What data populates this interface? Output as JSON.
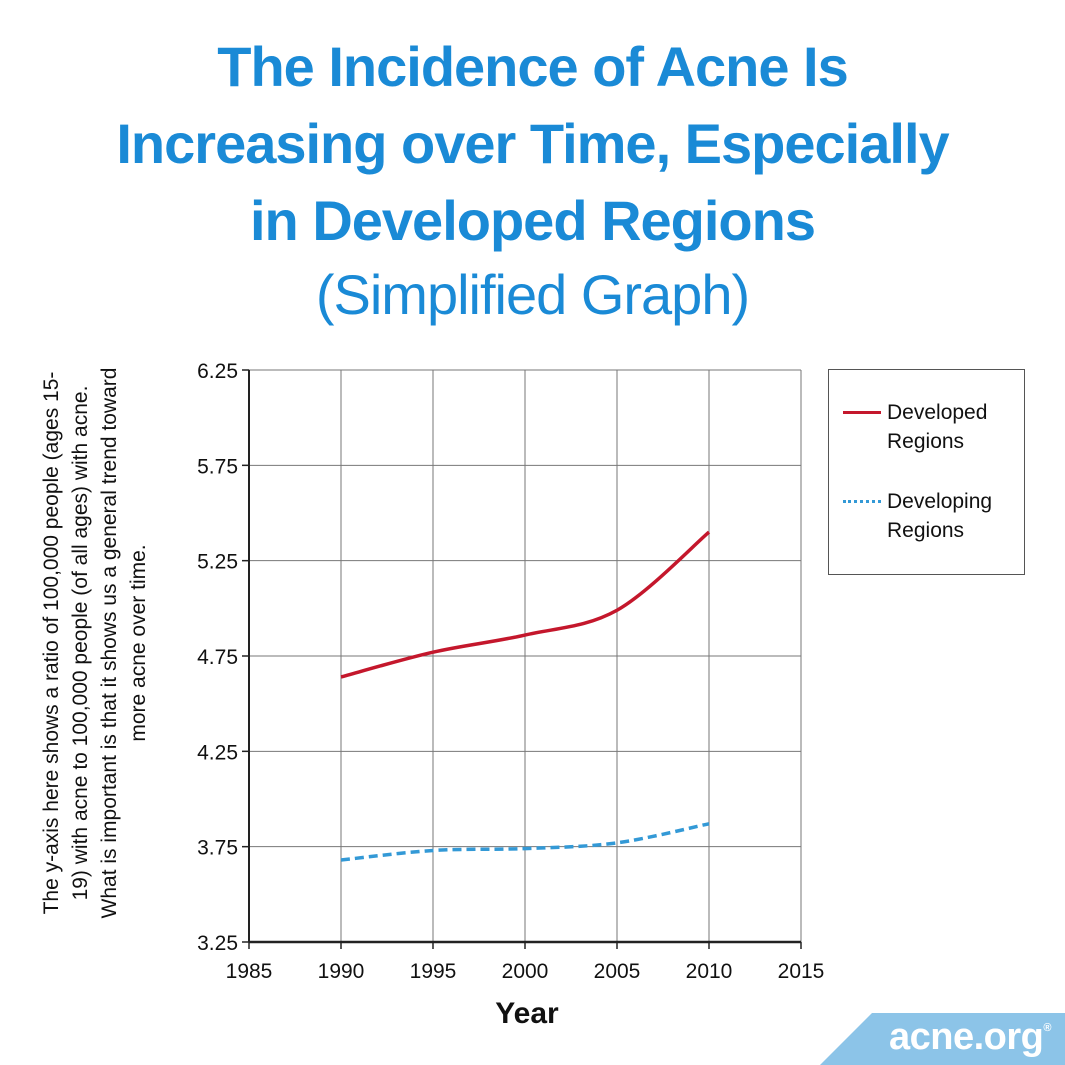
{
  "title": {
    "lines": [
      "The Incidence of Acne Is",
      "Increasing over Time, Especially",
      "in Developed Regions"
    ],
    "subtitle": "(Simplified Graph)"
  },
  "y_note": "The y-axis here shows a ratio of 100,000 people (ages 15-19) with acne to 100,000 people (of all ages) with acne. What is important is that it shows us a general trend toward more acne over time.",
  "logo": {
    "text": "acne.org",
    "mark": "®",
    "color": "#8cc4e8"
  },
  "colors": {
    "title": "#1a8ad6",
    "developed": "#c4172c",
    "developing": "#3399d6",
    "grid": "#777777"
  },
  "chart_data": {
    "type": "line",
    "title": "The Incidence of Acne Is Increasing over Time, Especially in Developed Regions (Simplified Graph)",
    "xlabel": "Year",
    "ylabel": "",
    "xlim": [
      1985,
      2015
    ],
    "ylim": [
      3.25,
      6.25
    ],
    "xticks": [
      "1985",
      "1990",
      "1995",
      "2000",
      "2005",
      "2010",
      "2015"
    ],
    "yticks": [
      "3.25",
      "3.75",
      "4.25",
      "4.75",
      "5.25",
      "5.75",
      "6.25"
    ],
    "grid": true,
    "legend_position": "right",
    "x": [
      1990,
      1995,
      2000,
      2005,
      2010
    ],
    "series": [
      {
        "name": "Developed Regions",
        "legend": [
          "Developed",
          "Regions"
        ],
        "style": "solid",
        "color": "#c4172c",
        "values": [
          4.64,
          4.77,
          4.86,
          4.99,
          5.4
        ]
      },
      {
        "name": "Developing Regions",
        "legend": [
          "Developing",
          "Regions"
        ],
        "style": "dashed",
        "color": "#3399d6",
        "values": [
          3.68,
          3.73,
          3.74,
          3.77,
          3.87
        ]
      }
    ]
  }
}
